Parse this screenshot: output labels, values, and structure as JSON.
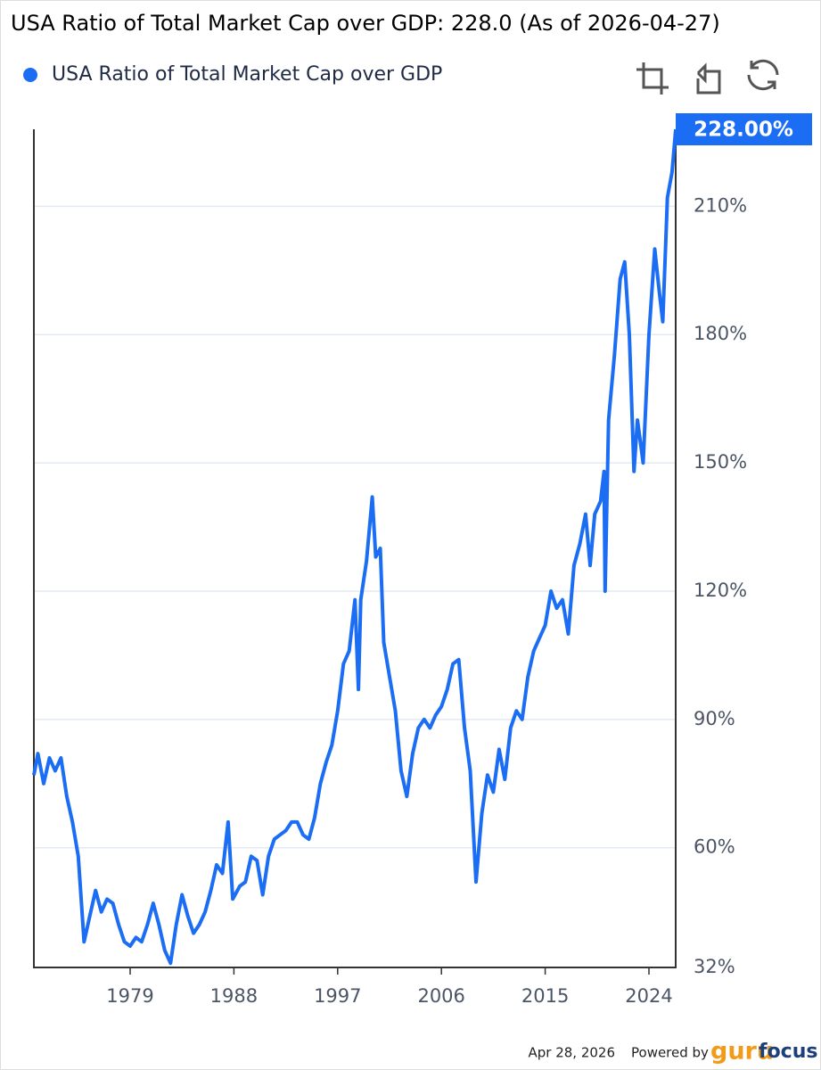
{
  "chart_data": {
    "type": "line",
    "title": "USA Ratio of Total Market Cap over GDP: 228.0 (As of 2026-04-27)",
    "x": [
      1970.65,
      1971,
      1971.5,
      1972,
      1972.5,
      1973,
      1973.5,
      1974,
      1974.5,
      1975,
      1975.5,
      1976,
      1976.5,
      1977,
      1977.5,
      1978,
      1978.5,
      1979,
      1979.5,
      1980,
      1980.5,
      1981,
      1981.5,
      1982,
      1982.5,
      1983,
      1983.5,
      1984,
      1984.5,
      1985,
      1985.5,
      1986,
      1986.5,
      1987,
      1987.5,
      1987.9,
      1988.5,
      1989,
      1989.5,
      1990,
      1990.5,
      1991,
      1991.5,
      1992,
      1992.5,
      1993,
      1993.5,
      1994,
      1994.5,
      1995,
      1995.5,
      1996,
      1996.5,
      1997,
      1997.5,
      1998,
      1998.5,
      1998.8,
      1999,
      1999.5,
      2000,
      2000.3,
      2000.7,
      2001,
      2001.5,
      2002,
      2002.5,
      2003,
      2003.5,
      2004,
      2004.5,
      2005,
      2005.5,
      2006,
      2006.5,
      2007,
      2007.5,
      2008,
      2008.5,
      2009,
      2009.5,
      2010,
      2010.5,
      2011,
      2011.5,
      2012,
      2012.5,
      2013,
      2013.5,
      2014,
      2014.5,
      2015,
      2015.5,
      2016,
      2016.5,
      2017,
      2017.5,
      2018,
      2018.5,
      2018.9,
      2019.3,
      2019.8,
      2020.1,
      2020.2,
      2020.5,
      2021,
      2021.5,
      2021.9,
      2022.3,
      2022.7,
      2023,
      2023.5,
      2024,
      2024.5,
      2024.9,
      2025.2,
      2025.6,
      2026,
      2026.32
    ],
    "series": [
      {
        "name": "USA Ratio of Total Market Cap over GDP",
        "color": "#1b6ef3",
        "values": [
          77,
          82,
          75,
          81,
          78,
          81,
          72,
          66,
          58,
          38,
          44,
          50,
          45,
          48,
          47,
          42,
          38,
          37,
          39,
          38,
          42,
          47,
          42,
          36,
          33,
          42,
          49,
          44,
          40,
          42,
          45,
          50,
          56,
          54,
          66,
          48,
          51,
          52,
          58,
          57,
          49,
          58,
          62,
          63,
          64,
          66,
          66,
          63,
          62,
          67,
          75,
          80,
          84,
          92,
          103,
          106,
          118,
          97,
          118,
          127,
          142,
          128,
          130,
          108,
          100,
          92,
          78,
          72,
          82,
          88,
          90,
          88,
          91,
          93,
          97,
          103,
          104,
          88,
          78,
          52,
          68,
          77,
          73,
          83,
          76,
          88,
          92,
          90,
          100,
          106,
          109,
          112,
          120,
          116,
          118,
          110,
          126,
          131,
          138,
          126,
          138,
          141,
          148,
          120,
          160,
          175,
          193,
          197,
          180,
          148,
          160,
          150,
          180,
          200,
          190,
          183,
          212,
          218,
          228
        ],
        "value_labels": [
          null,
          null,
          null,
          null,
          null,
          null,
          null,
          null,
          null,
          null,
          null,
          null,
          null,
          null,
          null,
          null,
          null,
          null,
          null,
          null,
          null,
          null,
          null,
          null,
          null,
          null,
          null,
          null,
          null,
          null,
          null,
          null,
          null,
          null,
          null,
          null,
          null,
          null,
          null,
          null,
          null,
          null,
          null,
          null,
          null,
          null,
          null,
          null,
          null,
          null,
          null,
          null,
          null,
          null,
          null,
          null,
          null,
          null,
          null,
          null,
          null,
          null,
          null,
          null,
          null,
          null,
          null,
          null,
          null,
          null,
          null,
          null,
          null,
          null,
          null,
          null,
          null,
          null,
          null,
          null,
          null,
          null,
          null,
          null,
          null,
          null,
          null,
          null,
          null,
          null,
          null,
          null,
          null,
          null,
          null,
          null,
          null,
          null,
          null,
          null,
          null,
          null,
          null,
          null,
          null,
          null,
          null,
          null,
          null,
          null,
          null,
          null,
          null,
          null,
          null,
          null,
          null,
          null,
          "228.00%"
        ]
      }
    ],
    "xlim": [
      1970.65,
      2026.32
    ],
    "xticks": [
      1979,
      1988,
      1997,
      2006,
      2015,
      2024
    ],
    "ylim": [
      32,
      228
    ],
    "yticks": [
      {
        "value": 32,
        "label": "32%"
      },
      {
        "value": 60,
        "label": "60%"
      },
      {
        "value": 90,
        "label": "90%"
      },
      {
        "value": 120,
        "label": "120%"
      },
      {
        "value": 150,
        "label": "150%"
      },
      {
        "value": 180,
        "label": "180%"
      },
      {
        "value": 210,
        "label": "210%"
      }
    ],
    "grid": true,
    "legend": "top-left"
  },
  "footer": {
    "date": "Apr 28, 2026",
    "powered_by": "Powered by",
    "brand_prefix": "guru",
    "brand_suffix": "focus"
  }
}
